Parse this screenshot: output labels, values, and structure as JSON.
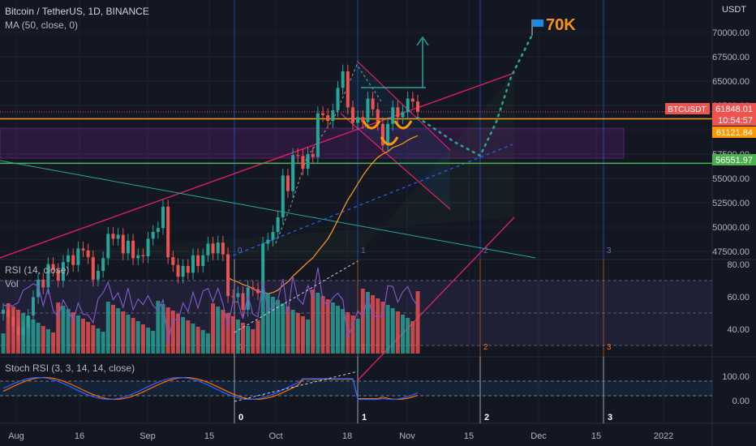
{
  "header": {
    "title": "Bitcoin / TetherUS, 1D, BINANCE",
    "ma_label": "MA (50, close, 0)",
    "currency": "USDT",
    "rsi_label": "RSI (14, close)",
    "vol_label": "Vol",
    "stoch_label": "Stoch RSI (3, 3, 14, 14, close)"
  },
  "annotations": {
    "target_label": "70K",
    "wave_labels": [
      "0",
      "1",
      "2",
      "3"
    ]
  },
  "price_tags": {
    "symbol": "BTCUSDT",
    "last_price": "61848.01",
    "countdown": "10:54:57",
    "orange_level": "61121.84",
    "green_level": "56551.97"
  },
  "colors": {
    "background": "#131722",
    "up": "#26a69a",
    "down": "#ef5350",
    "ma": "#f7931a",
    "channel": "#e91e63",
    "support_green": "#4caf50",
    "resistance_orange": "#ff9800",
    "rsi_line": "#7e57c2",
    "stoch_k": "#2962ff",
    "stoch_d": "#ff6d00",
    "wave_line": "#2962ff",
    "target": "#26a69a"
  },
  "chart_data": [
    {
      "type": "candlestick",
      "title": "Bitcoin / TetherUS, 1D, BINANCE",
      "x_ticks": [
        "Aug",
        "16",
        "Sep",
        "15",
        "Oct",
        "18",
        "Nov",
        "15",
        "Dec",
        "15",
        "2022"
      ],
      "y_ticks": [
        47500,
        50000,
        52500,
        55000,
        57500,
        60000,
        62500,
        65000,
        67500,
        70000
      ],
      "ylim": [
        45500,
        72500
      ],
      "horizontal_levels": {
        "resistance": 61121.84,
        "support": 56551.97,
        "last": 61848.01
      },
      "target": 70000,
      "closes": [
        41500,
        40800,
        39800,
        38900,
        39700,
        40900,
        42800,
        44600,
        43800,
        46200,
        45600,
        44500,
        46400,
        47100,
        46100,
        47800,
        47600,
        46900,
        44600,
        45500,
        46800,
        49300,
        48800,
        49200,
        47300,
        48600,
        46800,
        47100,
        47000,
        48800,
        49500,
        49900,
        52100,
        46900,
        46100,
        44900,
        46000,
        45300,
        47100,
        46000,
        47100,
        48300,
        47300,
        48400,
        47200,
        42900,
        42800,
        43200,
        41500,
        43800,
        43600,
        43200,
        48300,
        48700,
        49500,
        51000,
        55300,
        53700,
        57400,
        57300,
        56000,
        57500,
        57200,
        61700,
        61500,
        60900,
        62000,
        64300,
        66000,
        62300,
        60700,
        61300,
        60800,
        63200,
        62100,
        60600,
        58400,
        60600,
        62300,
        61300,
        61800,
        63200,
        62900,
        61848
      ]
    },
    {
      "type": "line",
      "series": [
        {
          "name": "RSI (14, close)"
        }
      ],
      "y_ticks": [
        40,
        60,
        80
      ],
      "ylim": [
        28,
        82
      ],
      "bands": [
        30,
        50,
        70
      ]
    },
    {
      "type": "bar",
      "series": [
        {
          "name": "Vol"
        }
      ]
    },
    {
      "type": "line",
      "series": [
        {
          "name": "Stoch RSI (3, 3, 14, 14, close)"
        }
      ],
      "y_ticks": [
        0,
        100
      ],
      "ylim": [
        -10,
        115
      ],
      "bands": [
        20,
        80
      ]
    }
  ]
}
